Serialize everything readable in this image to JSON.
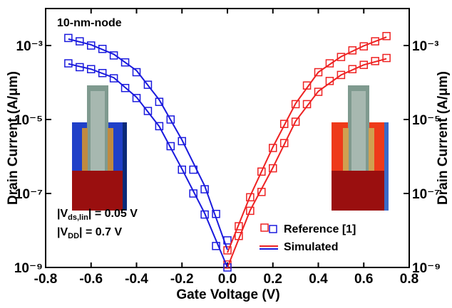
{
  "chart_data": {
    "type": "scatter-line",
    "xlabel": "Gate Voltage (V)",
    "ylabel": "Drain Current (A/μm)",
    "y2label": "Drain Current (A/μm)",
    "yscale": "log",
    "xlim": [
      -0.8,
      0.8
    ],
    "xticks": [
      -0.8,
      -0.6,
      -0.4,
      -0.2,
      {
        "value": 0,
        "label": "0.0"
      },
      0.2,
      0.4,
      0.6,
      0.8
    ],
    "ylim": [
      1e-09,
      0.01
    ],
    "yticks": [
      {
        "value": 1e-09,
        "label": "10⁻⁹"
      },
      {
        "value": 1e-07,
        "label": "10⁻⁷"
      },
      {
        "value": 1e-05,
        "label": "10⁻⁵"
      },
      {
        "value": 0.001,
        "label": "10⁻³"
      }
    ],
    "y2lim": [
      1e-09,
      0.01
    ],
    "y2ticks": [
      {
        "value": 1e-09,
        "label": "10⁻⁹"
      },
      {
        "value": 1e-07,
        "label": "10⁻⁷"
      },
      {
        "value": 1e-05,
        "label": "10⁻⁵"
      },
      {
        "value": 0.001,
        "label": "10⁻³"
      }
    ],
    "annotations": {
      "node": "10-nm-node",
      "vds": [
        "|V",
        "ds,lin",
        "| = 0.05 V"
      ],
      "vdd": [
        "|V",
        "DD",
        "| = 0.7 V"
      ]
    },
    "series": [
      {
        "name": "Reference [1]",
        "style": "markers",
        "color": "#ee2222",
        "x": [
          0,
          0.05,
          0.1,
          0.15,
          0.2,
          0.25,
          0.3,
          0.35,
          0.4,
          0.45,
          0.5,
          0.55,
          0.6,
          0.65,
          0.7
        ],
        "values": [
          2.9e-09,
          1.3e-08,
          7.9e-08,
          3.9e-07,
          1.7e-06,
          7.6e-06,
          2.6e-05,
          8.3e-05,
          0.00019,
          0.00033,
          0.00049,
          0.00074,
          0.00095,
          0.0013,
          0.0018
        ]
      },
      {
        "name": "Reference [1]",
        "style": "markers",
        "color": "#ee2222",
        "x": [
          0,
          0.05,
          0.1,
          0.15,
          0.2,
          0.25,
          0.3,
          0.35,
          0.4,
          0.45,
          0.5,
          0.55,
          0.6,
          0.65,
          0.7
        ],
        "values": [
          1.2e-09,
          7.1e-09,
          3.4e-08,
          1.1e-07,
          4.8e-07,
          2.3e-06,
          8.7e-06,
          2.6e-05,
          5.6e-05,
          0.00011,
          0.00016,
          0.00023,
          0.0003,
          0.00038,
          0.00046
        ]
      },
      {
        "name": "Reference [1]",
        "style": "markers",
        "color": "#1a1add",
        "x": [
          -0.7,
          -0.65,
          -0.6,
          -0.55,
          -0.5,
          -0.45,
          -0.4,
          -0.35,
          -0.3,
          -0.25,
          -0.2,
          -0.15,
          -0.1,
          -0.05,
          0
        ],
        "values": [
          0.0016,
          0.0013,
          0.001,
          0.00081,
          0.00054,
          0.00035,
          0.00019,
          8.7e-05,
          3e-05,
          1e-05,
          2.6e-06,
          4.4e-07,
          1.3e-07,
          2.8e-08,
          5.4e-09
        ]
      },
      {
        "name": "Reference [1]",
        "style": "markers",
        "color": "#1a1add",
        "x": [
          -0.7,
          -0.65,
          -0.6,
          -0.55,
          -0.5,
          -0.45,
          -0.4,
          -0.35,
          -0.3,
          -0.25,
          -0.2,
          -0.15,
          -0.1,
          -0.05,
          0
        ],
        "values": [
          0.00033,
          0.00026,
          0.00023,
          0.00018,
          0.00013,
          7.1e-05,
          3.8e-05,
          1.7e-05,
          6.6e-06,
          1.9e-06,
          4.4e-07,
          1e-07,
          2.7e-08,
          3.8e-09,
          1e-09
        ]
      },
      {
        "name": "Simulated",
        "style": "line",
        "color": "#ee2222",
        "x": [
          0,
          0.1,
          0.2,
          0.3,
          0.4,
          0.5,
          0.6,
          0.7
        ],
        "values": [
          2.5e-09,
          8.5e-08,
          1.8e-06,
          2.7e-05,
          0.00019,
          0.0005,
          0.00098,
          0.0017
        ]
      },
      {
        "name": "Simulated",
        "style": "line",
        "color": "#ee2222",
        "x": [
          0,
          0.1,
          0.2,
          0.3,
          0.4,
          0.5,
          0.6,
          0.7
        ],
        "values": [
          1e-09,
          3.5e-08,
          5e-07,
          9e-06,
          5.8e-05,
          0.00016,
          0.0003,
          0.00044
        ]
      },
      {
        "name": "Simulated",
        "style": "line",
        "color": "#1a1add",
        "x": [
          -0.7,
          -0.6,
          -0.5,
          -0.4,
          -0.3,
          -0.2,
          -0.1,
          0
        ],
        "values": [
          0.0015,
          0.00105,
          0.00058,
          0.00021,
          3.4e-05,
          2.8e-06,
          1.6e-07,
          3e-09
        ]
      },
      {
        "name": "Simulated",
        "style": "line",
        "color": "#1a1add",
        "x": [
          -0.7,
          -0.6,
          -0.5,
          -0.4,
          -0.3,
          -0.2,
          -0.1,
          0
        ],
        "values": [
          0.00032,
          0.00023,
          0.000135,
          4e-05,
          6.5e-06,
          4.6e-07,
          2.9e-08,
          1e-09
        ]
      }
    ]
  }
}
